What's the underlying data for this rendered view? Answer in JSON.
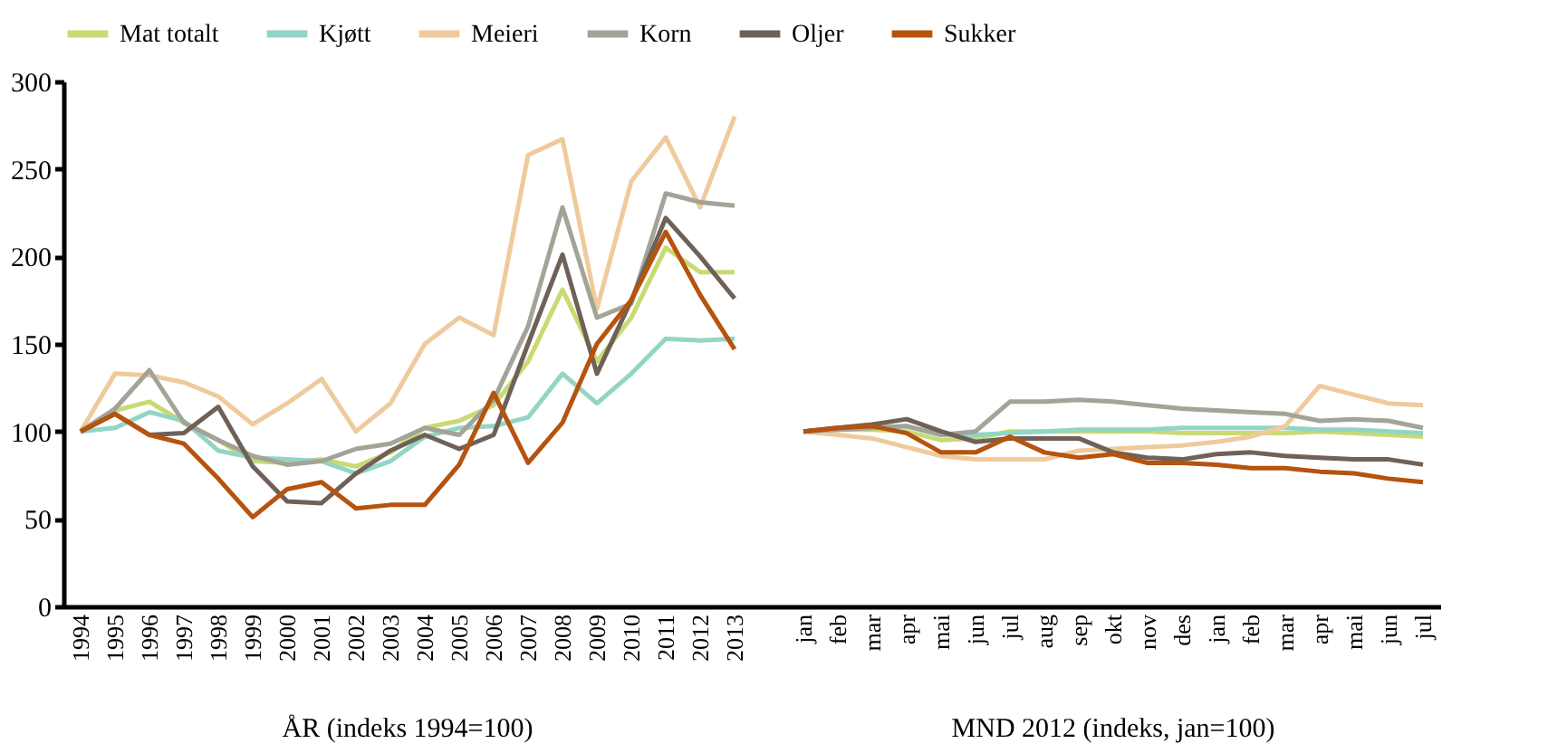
{
  "chart_data": {
    "type": "line",
    "categories": [
      "1994",
      "1995",
      "1996",
      "1997",
      "1998",
      "1999",
      "2000",
      "2001",
      "2002",
      "2003",
      "2004",
      "2005",
      "2006",
      "2007",
      "2008",
      "2009",
      "2010",
      "2011",
      "2012",
      "2013",
      null,
      "jan",
      "feb",
      "mar",
      "apr",
      "mai",
      "jun",
      "jul",
      "aug",
      "sep",
      "okt",
      "nov",
      "des",
      "jan",
      "feb",
      "mar",
      "apr",
      "mai",
      "jun",
      "jul"
    ],
    "series": [
      {
        "name": "Mat totalt",
        "color": "#c8da72",
        "values": [
          100,
          112,
          117,
          105,
          95,
          83,
          82,
          84,
          80,
          88,
          102,
          106,
          115,
          140,
          181,
          140,
          165,
          205,
          191,
          191,
          null,
          100,
          101,
          101,
          100,
          95,
          96,
          100,
          100,
          100,
          100,
          100,
          99,
          99,
          99,
          99,
          100,
          99,
          98,
          97
        ]
      },
      {
        "name": "Kjøtt",
        "color": "#93d5c5",
        "values": [
          100,
          102,
          111,
          106,
          89,
          85,
          84,
          83,
          76,
          83,
          97,
          102,
          103,
          108,
          133,
          116,
          133,
          153,
          152,
          153,
          null,
          100,
          101,
          102,
          103,
          98,
          98,
          99,
          100,
          101,
          101,
          101,
          102,
          102,
          102,
          102,
          101,
          101,
          100,
          99
        ]
      },
      {
        "name": "Meieri",
        "color": "#efca9c",
        "values": [
          100,
          133,
          132,
          128,
          120,
          104,
          116,
          130,
          100,
          116,
          150,
          165,
          155,
          258,
          267,
          170,
          243,
          268,
          228,
          280,
          null,
          100,
          98,
          96,
          91,
          86,
          84,
          84,
          84,
          89,
          90,
          91,
          92,
          94,
          97,
          103,
          126,
          121,
          116,
          115
        ]
      },
      {
        "name": "Korn",
        "color": "#a3a398",
        "values": [
          100,
          113,
          135,
          105,
          95,
          86,
          81,
          83,
          90,
          93,
          102,
          98,
          118,
          160,
          228,
          165,
          173,
          236,
          231,
          229,
          null,
          100,
          101,
          102,
          103,
          98,
          100,
          117,
          117,
          118,
          117,
          115,
          113,
          112,
          111,
          110,
          106,
          107,
          106,
          102
        ]
      },
      {
        "name": "Oljer",
        "color": "#6f6158",
        "values": [
          100,
          110,
          98,
          99,
          114,
          80,
          60,
          59,
          76,
          89,
          98,
          90,
          98,
          150,
          201,
          133,
          175,
          222,
          200,
          176,
          null,
          100,
          102,
          104,
          107,
          100,
          94,
          96,
          96,
          96,
          88,
          85,
          84,
          87,
          88,
          86,
          85,
          84,
          84,
          81
        ]
      },
      {
        "name": "Sukker",
        "color": "#b5530f",
        "values": [
          100,
          110,
          98,
          93,
          73,
          51,
          67,
          71,
          56,
          58,
          58,
          81,
          122,
          82,
          105,
          150,
          175,
          214,
          178,
          147,
          null,
          100,
          102,
          103,
          99,
          88,
          88,
          97,
          88,
          85,
          87,
          82,
          82,
          81,
          79,
          79,
          77,
          76,
          73,
          71
        ]
      }
    ],
    "ylim": [
      0,
      300
    ],
    "yticks": [
      0,
      50,
      100,
      150,
      200,
      250,
      300
    ],
    "annotations": [
      "ÅR (indeks 1994=100)",
      "MND 2012 (indeks, jan=100)"
    ],
    "legend": "top",
    "grid": false,
    "marker": "none",
    "line_style": "solid"
  }
}
